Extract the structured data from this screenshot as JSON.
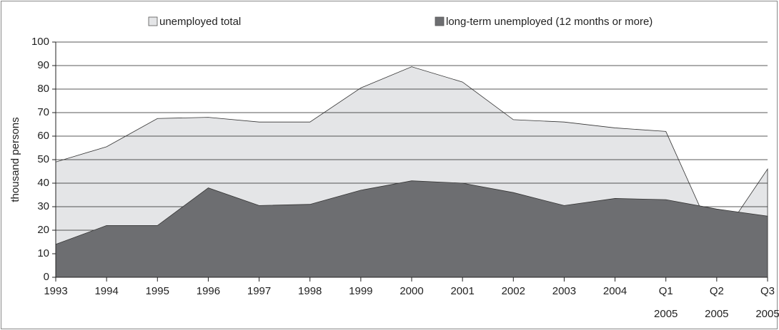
{
  "chart_data": {
    "type": "area",
    "y_label": "thousand persons",
    "categories": [
      "1993",
      "1994",
      "1995",
      "1996",
      "1997",
      "1998",
      "1999",
      "2000",
      "2001",
      "2002",
      "2003",
      "2004",
      "Q1 2005",
      "Q2 2005",
      "Q3 2005"
    ],
    "series": [
      {
        "name": "unemployed total",
        "color": "#e4e5e7",
        "values": [
          49,
          55.5,
          67.5,
          68,
          66,
          66,
          80.5,
          89.5,
          83,
          67,
          66,
          63.5,
          62,
          14,
          46
        ]
      },
      {
        "name": "long-term unemployed (12 months or more)",
        "color": "#6d6e71",
        "values": [
          14,
          22,
          22,
          38,
          30.5,
          31,
          37,
          41,
          40,
          36,
          30.5,
          33.5,
          33,
          29,
          26
        ]
      }
    ],
    "ylim": [
      0,
      100
    ],
    "yticks": [
      0,
      10,
      20,
      30,
      40,
      50,
      60,
      70,
      80,
      90,
      100
    ],
    "grid": true,
    "legend": "top"
  }
}
